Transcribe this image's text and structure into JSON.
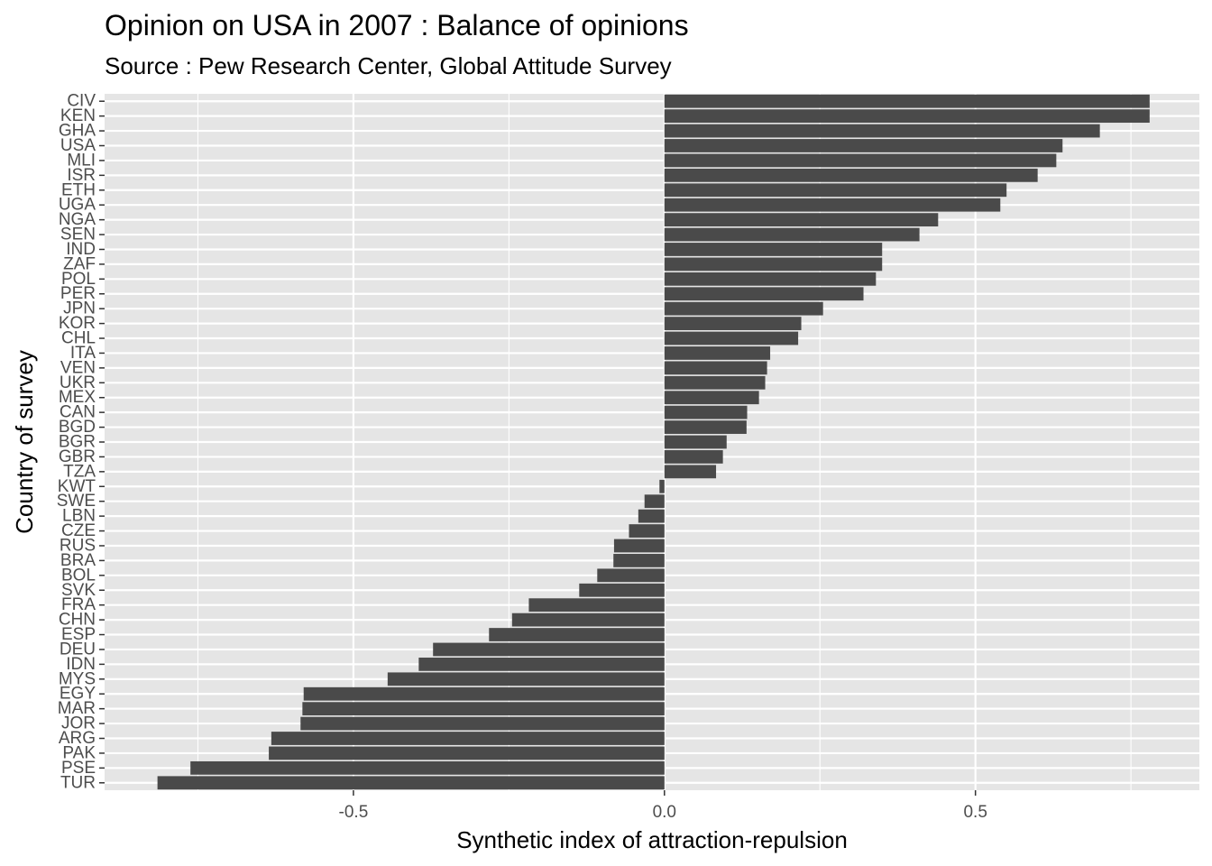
{
  "chart_data": {
    "type": "bar",
    "orientation": "horizontal",
    "title": "Opinion on USA in 2007 : Balance of opinions",
    "subtitle": "Source : Pew Research Center, Global Attitude Survey",
    "xlabel": "Synthetic index of attraction-repulsion",
    "ylabel": "Country of survey",
    "xlim": [
      -0.9,
      0.86
    ],
    "xticks": [
      -0.5,
      0.0,
      0.5
    ],
    "xtick_labels": [
      "-0.5",
      "0.0",
      "0.5"
    ],
    "grid": true,
    "bar_color": "#4a4a4a",
    "panel_color": "#e5e5e5",
    "grid_color": "#ffffff",
    "categories": [
      "CIV",
      "KEN",
      "GHA",
      "USA",
      "MLI",
      "ISR",
      "ETH",
      "UGA",
      "NGA",
      "SEN",
      "IND",
      "ZAF",
      "POL",
      "PER",
      "JPN",
      "KOR",
      "CHL",
      "ITA",
      "VEN",
      "UKR",
      "MEX",
      "CAN",
      "BGD",
      "BGR",
      "GBR",
      "TZA",
      "KWT",
      "SWE",
      "LBN",
      "CZE",
      "RUS",
      "BRA",
      "BOL",
      "SVK",
      "FRA",
      "CHN",
      "ESP",
      "DEU",
      "IDN",
      "MYS",
      "EGY",
      "MAR",
      "JOR",
      "ARG",
      "PAK",
      "PSE",
      "TUR"
    ],
    "values": [
      0.78,
      0.78,
      0.7,
      0.64,
      0.63,
      0.6,
      0.55,
      0.54,
      0.44,
      0.41,
      0.35,
      0.35,
      0.34,
      0.32,
      0.255,
      0.22,
      0.215,
      0.17,
      0.165,
      0.162,
      0.152,
      0.133,
      0.132,
      0.1,
      0.094,
      0.083,
      -0.008,
      -0.032,
      -0.042,
      -0.057,
      -0.081,
      -0.082,
      -0.108,
      -0.137,
      -0.218,
      -0.245,
      -0.282,
      -0.372,
      -0.395,
      -0.445,
      -0.58,
      -0.582,
      -0.585,
      -0.632,
      -0.636,
      -0.762,
      -0.815
    ]
  }
}
